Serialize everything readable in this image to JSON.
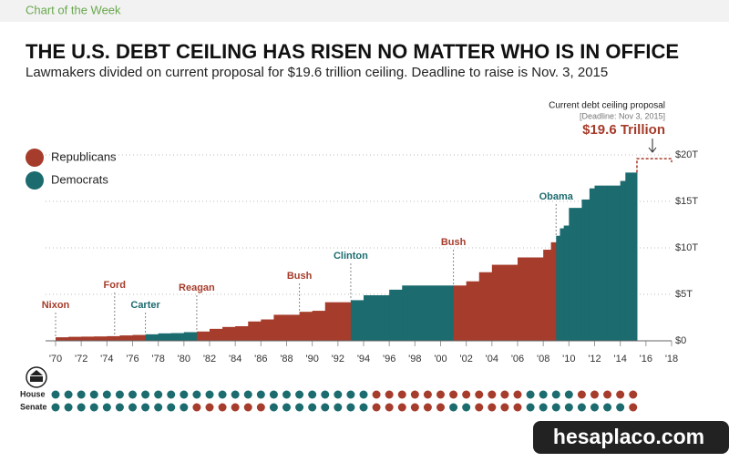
{
  "header": "Chart of the Week",
  "watermark": "hesaplaco.com",
  "chart_data": {
    "type": "step",
    "title": "THE U.S. DEBT CEILING HAS RISEN NO MATTER WHO IS IN OFFICE",
    "subtitle": "Lawmakers divided on current proposal for $19.6 trillion ceiling. Deadline to raise is Nov. 3, 2015",
    "series": [
      {
        "name": "Republicans",
        "color": "#a63c2b"
      },
      {
        "name": "Democrats",
        "color": "#1b6b6f"
      }
    ],
    "x": [
      1970,
      1971,
      1972,
      1973,
      1974,
      1975,
      1976,
      1977,
      1978,
      1979,
      1980,
      1981,
      1982,
      1983,
      1984,
      1985,
      1986,
      1987,
      1989,
      1990,
      1991,
      1993,
      1994,
      1996,
      1997,
      2001,
      2002,
      2003,
      2004,
      2006,
      2007,
      2008,
      2008.6,
      2009,
      2009.3,
      2009.6,
      2010,
      2011,
      2011.6,
      2012,
      2013,
      2014,
      2014.4
    ],
    "values": [
      0.38,
      0.43,
      0.45,
      0.47,
      0.5,
      0.58,
      0.63,
      0.7,
      0.8,
      0.83,
      0.93,
      1.0,
      1.29,
      1.49,
      1.57,
      2.08,
      2.3,
      2.8,
      3.12,
      3.23,
      4.15,
      4.37,
      4.9,
      5.5,
      5.95,
      5.95,
      6.4,
      7.38,
      8.18,
      8.97,
      8.97,
      9.8,
      10.6,
      11.3,
      12.1,
      12.4,
      14.3,
      15.2,
      16.4,
      16.7,
      16.7,
      17.2,
      18.1
    ],
    "party": [
      0,
      0,
      0,
      0,
      0,
      0,
      0,
      1,
      1,
      1,
      1,
      0,
      0,
      0,
      0,
      0,
      0,
      0,
      0,
      0,
      0,
      1,
      1,
      1,
      1,
      0,
      0,
      0,
      0,
      0,
      0,
      0,
      0,
      1,
      1,
      1,
      1,
      1,
      1,
      1,
      1,
      1,
      1
    ],
    "presidents": [
      {
        "name": "Nixon",
        "x": 1970,
        "party": 0
      },
      {
        "name": "Ford",
        "x": 1974.6,
        "party": 0
      },
      {
        "name": "Carter",
        "x": 1977,
        "party": 1
      },
      {
        "name": "Reagan",
        "x": 1981,
        "party": 0
      },
      {
        "name": "Bush",
        "x": 1989,
        "party": 0
      },
      {
        "name": "Clinton",
        "x": 1993,
        "party": 1
      },
      {
        "name": "Bush",
        "x": 2001,
        "party": 0
      },
      {
        "name": "Obama",
        "x": 2009,
        "party": 1
      }
    ],
    "proposal": {
      "title": "Current debt ceiling proposal",
      "note": "[Deadline: Nov 3, 2015]",
      "label": "$19.6 Trillion",
      "x": 2015.3,
      "value": 19.6
    },
    "xlim": [
      1970,
      2018
    ],
    "xticks": [
      {
        "value": 1970,
        "label": "'70"
      },
      {
        "value": 1972,
        "label": "'72"
      },
      {
        "value": 1974,
        "label": "'74"
      },
      {
        "value": 1976,
        "label": "'76"
      },
      {
        "value": 1978,
        "label": "'78"
      },
      {
        "value": 1980,
        "label": "'80"
      },
      {
        "value": 1982,
        "label": "'82"
      },
      {
        "value": 1984,
        "label": "'84"
      },
      {
        "value": 1986,
        "label": "'86"
      },
      {
        "value": 1988,
        "label": "'88"
      },
      {
        "value": 1990,
        "label": "'90"
      },
      {
        "value": 1992,
        "label": "'92"
      },
      {
        "value": 1994,
        "label": "'94"
      },
      {
        "value": 1996,
        "label": "'96"
      },
      {
        "value": 1998,
        "label": "'98"
      },
      {
        "value": 2000,
        "label": "'00"
      },
      {
        "value": 2002,
        "label": "'02"
      },
      {
        "value": 2004,
        "label": "'04"
      },
      {
        "value": 2006,
        "label": "'06"
      },
      {
        "value": 2008,
        "label": "'08"
      },
      {
        "value": 2010,
        "label": "'10"
      },
      {
        "value": 2012,
        "label": "'12"
      },
      {
        "value": 2014,
        "label": "'14"
      },
      {
        "value": 2016,
        "label": "'16"
      },
      {
        "value": 2018,
        "label": "'18"
      }
    ],
    "ylim": [
      0,
      20
    ],
    "yticks": [
      {
        "value": 0,
        "label": "$0"
      },
      {
        "value": 5,
        "label": "$5T"
      },
      {
        "value": 10,
        "label": "$10T"
      },
      {
        "value": 15,
        "label": "$15T"
      },
      {
        "value": 20,
        "label": "$20T"
      }
    ],
    "grid": true,
    "control": [
      {
        "label": "House",
        "party": [
          1,
          1,
          1,
          1,
          1,
          1,
          1,
          1,
          1,
          1,
          1,
          1,
          1,
          1,
          1,
          1,
          1,
          1,
          1,
          1,
          1,
          1,
          1,
          1,
          1,
          0,
          0,
          0,
          0,
          0,
          0,
          0,
          0,
          0,
          0,
          0,
          0,
          1,
          1,
          1,
          1,
          0,
          0,
          0,
          0,
          0
        ]
      },
      {
        "label": "Senate",
        "party": [
          1,
          1,
          1,
          1,
          1,
          1,
          1,
          1,
          1,
          1,
          1,
          0,
          0,
          0,
          0,
          0,
          0,
          1,
          1,
          1,
          1,
          1,
          1,
          1,
          1,
          0,
          0,
          0,
          0,
          0,
          0,
          1,
          1,
          0,
          0,
          0,
          0,
          1,
          1,
          1,
          1,
          1,
          1,
          1,
          1,
          0
        ]
      }
    ]
  }
}
